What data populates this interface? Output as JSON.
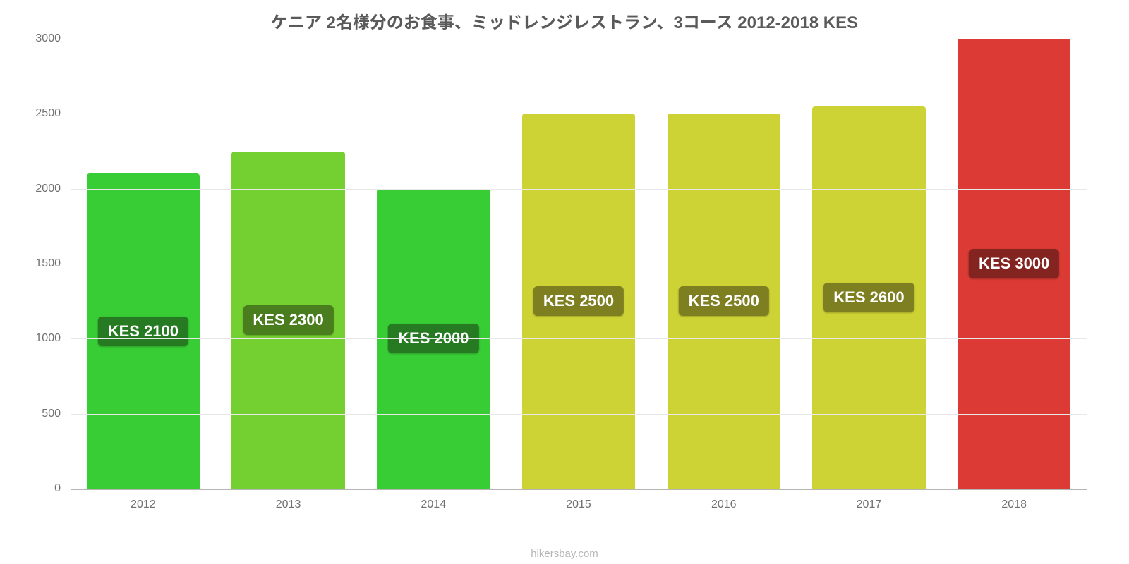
{
  "chart": {
    "type": "bar",
    "title": "ケニア 2名様分のお食事、ミッドレンジレストラン、3コース 2012-2018 KES",
    "title_fontsize": 24,
    "title_color": "#5a5a5a",
    "source": "hikersbay.com",
    "background_color": "#ffffff",
    "grid_color": "#e8e8e8",
    "axis_font_color": "#717171",
    "axis_fontsize": 16,
    "ylim": [
      0,
      3000
    ],
    "yticks": [
      0,
      500,
      1000,
      1500,
      2000,
      2500,
      3000
    ],
    "bar_width_pct": 78,
    "bar_border_radius": 4,
    "label_fontsize": 22,
    "label_text_color": "#ffffff",
    "categories": [
      "2012",
      "2013",
      "2014",
      "2015",
      "2016",
      "2017",
      "2018"
    ],
    "bars": [
      {
        "value": 2100,
        "display": "KES 2100",
        "fill": "#38cd35",
        "label_bg": "#257a22"
      },
      {
        "value": 2250,
        "display": "KES 2300",
        "fill": "#74d030",
        "label_bg": "#4a7d1e"
      },
      {
        "value": 2000,
        "display": "KES 2000",
        "fill": "#38cd35",
        "label_bg": "#257a22"
      },
      {
        "value": 2500,
        "display": "KES 2500",
        "fill": "#ced335",
        "label_bg": "#7d7f20"
      },
      {
        "value": 2500,
        "display": "KES 2500",
        "fill": "#ced335",
        "label_bg": "#7d7f20"
      },
      {
        "value": 2550,
        "display": "KES 2600",
        "fill": "#ced335",
        "label_bg": "#7d7f20"
      },
      {
        "value": 3000,
        "display": "KES 3000",
        "fill": "#db3b34",
        "label_bg": "#832420"
      }
    ]
  }
}
